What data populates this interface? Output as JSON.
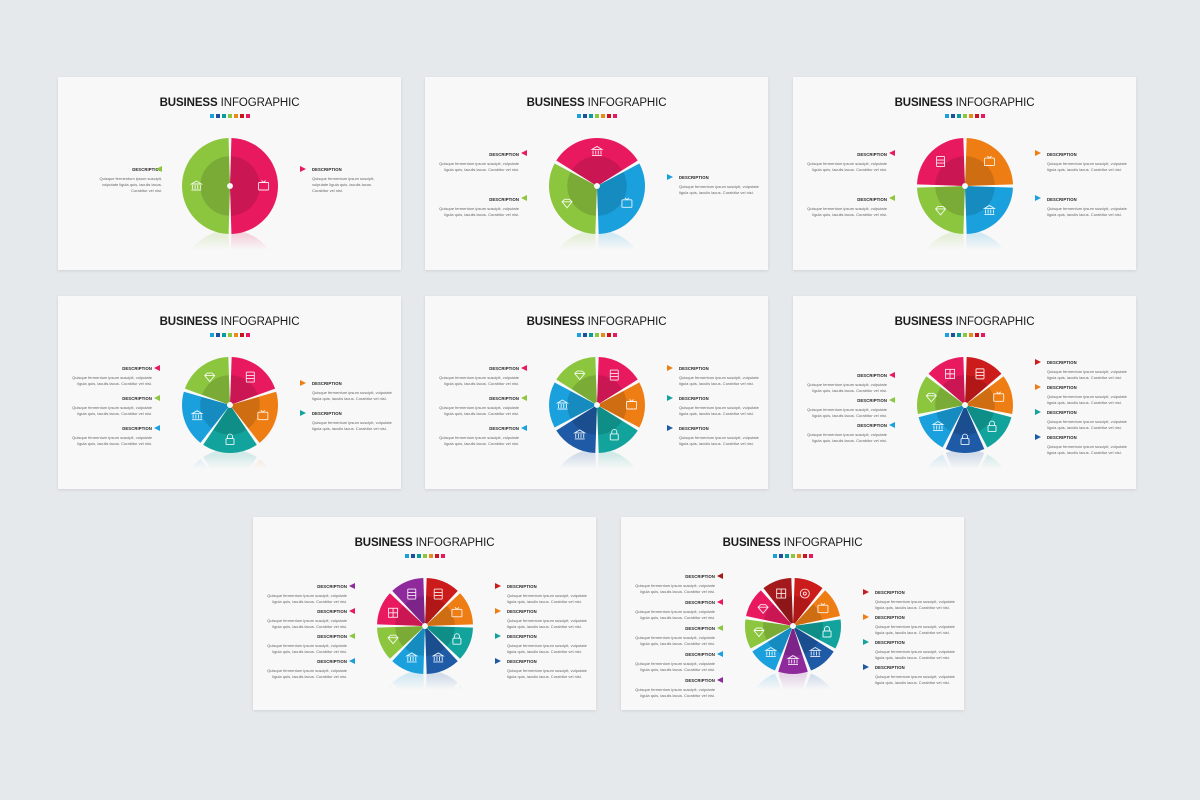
{
  "infographic": {
    "title_bold": "BUSINESS",
    "title_light": " INFOGRAPHIC",
    "description_heading": "DESCRIPTION",
    "description_text_short": "Quisque fermentum ipsum suscipit, vulputate ligula quis, iaculis lacus. Curabitur vel nisi.",
    "description_text_long": "Quisque fermentum ipsum suscipit, vulputate ligula quis, iaculis lacus. Curabitur vel nisi.",
    "accent_colors": [
      "#1aa0dc",
      "#1c4f9c",
      "#0a9e9a",
      "#8cc63f",
      "#e88b1a",
      "#c8151b",
      "#e8195f"
    ],
    "palette": {
      "green": "#8cc63f",
      "pink": "#e8195f",
      "blue": "#1aa0dc",
      "orange": "#ee7d14",
      "teal": "#12a49c",
      "navy": "#1f5aa6",
      "red": "#cc1b1b",
      "purple": "#8e2a9c",
      "dark_red": "#a3191c"
    }
  },
  "slides": [
    {
      "segments": [
        "green",
        "pink"
      ],
      "icons": [
        "bank-icon",
        "tv-icon"
      ]
    },
    {
      "segments": [
        "pink",
        "blue",
        "green"
      ],
      "icons": [
        "bank-icon",
        "tv-icon",
        "diamond-icon"
      ]
    },
    {
      "segments": [
        "pink",
        "orange",
        "blue",
        "green"
      ],
      "icons": [
        "film-icon",
        "tv-icon",
        "bank-icon",
        "diamond-icon"
      ]
    },
    {
      "segments": [
        "pink",
        "orange",
        "teal",
        "blue",
        "green"
      ],
      "icons": [
        "film-icon",
        "tv-icon",
        "lock-icon",
        "bank-icon",
        "diamond-icon"
      ]
    },
    {
      "segments": [
        "pink",
        "orange",
        "teal",
        "navy",
        "blue",
        "green"
      ],
      "icons": [
        "film-icon",
        "tv-icon",
        "lock-icon",
        "bank-icon",
        "bank-icon",
        "diamond-icon"
      ]
    },
    {
      "segments": [
        "red",
        "orange",
        "teal",
        "navy",
        "blue",
        "green",
        "pink"
      ],
      "icons": [
        "film-icon",
        "tv-icon",
        "lock-icon",
        "lock-icon",
        "bank-icon",
        "diamond-icon",
        "grid-icon"
      ]
    },
    {
      "segments": [
        "red",
        "orange",
        "teal",
        "navy",
        "blue",
        "green",
        "pink",
        "purple"
      ],
      "icons": [
        "film-icon",
        "tv-icon",
        "lock-icon",
        "bank-icon",
        "bank-icon",
        "diamond-icon",
        "grid-icon",
        "film-icon"
      ]
    },
    {
      "segments": [
        "red",
        "orange",
        "teal",
        "navy",
        "purple",
        "blue",
        "green",
        "pink",
        "dark_red"
      ],
      "icons": [
        "target-icon",
        "tv-icon",
        "lock-icon",
        "bank-icon",
        "bank-icon",
        "bank-icon",
        "diamond-icon",
        "diamond-icon",
        "grid-icon"
      ]
    }
  ]
}
